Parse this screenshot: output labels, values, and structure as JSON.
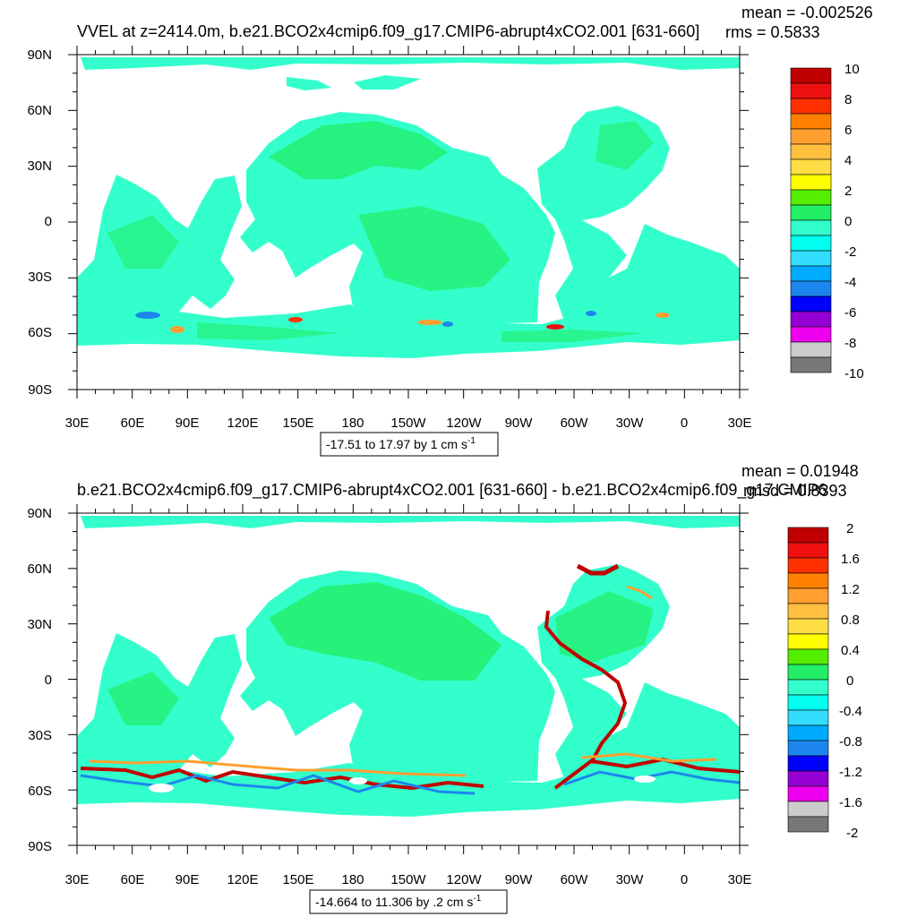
{
  "panels": [
    {
      "id": "top",
      "title": "VVEL at z=2414.0m, b.e21.BCO2x4cmip6.f09_g17.CMIP6-abrupt4xCO2.001 [631-660]",
      "mean_text": "mean = -0.002526",
      "rms_text": "rms = 0.5833",
      "range_text": "-17.51 to 17.97 by 1 cm s",
      "range_sup": "-1",
      "colorbar_labels": [
        "10",
        "8",
        "6",
        "4",
        "2",
        "0",
        "-2",
        "-4",
        "-6",
        "-8",
        "-10"
      ],
      "lat_labels": [
        "90N",
        "60N",
        "30N",
        "0",
        "30S",
        "60S",
        "90S"
      ],
      "lon_labels": [
        "30E",
        "60E",
        "90E",
        "120E",
        "150E",
        "180",
        "150W",
        "120W",
        "90W",
        "60W",
        "30W",
        "0",
        "30E"
      ]
    },
    {
      "id": "bottom",
      "title": "b.e21.BCO2x4cmip6.f09_g17.CMIP6-abrupt4xCO2.001 [631-660] - b.e21.BCO2x4cmip6.f09_g17.CMIP6",
      "mean_text": "mean = 0.01948",
      "rms_text": "rmsd = 0.8393",
      "range_text": "-14.664 to 11.306 by .2 cm s",
      "range_sup": "-1",
      "colorbar_labels": [
        "2",
        "1.6",
        "1.2",
        "0.8",
        "0.4",
        "0",
        "-0.4",
        "-0.8",
        "-1.2",
        "-1.6",
        "-2"
      ],
      "lat_labels": [
        "90N",
        "60N",
        "30N",
        "0",
        "30S",
        "60S",
        "90S"
      ],
      "lon_labels": [
        "30E",
        "60E",
        "90E",
        "120E",
        "150E",
        "180",
        "150W",
        "120W",
        "90W",
        "60W",
        "30W",
        "0",
        "30E"
      ]
    }
  ],
  "colormap": [
    "#777777",
    "#cccccc",
    "#ee00ee",
    "#9400d3",
    "#0000ff",
    "#1c86ee",
    "#00aaff",
    "#33ddff",
    "#00ffee",
    "#33ffcc",
    "#22ee66",
    "#55ee00",
    "#ffff00",
    "#ffdd44",
    "#ffc040",
    "#ff9f30",
    "#ff8000",
    "#ff3000",
    "#ee1010",
    "#c00000"
  ]
}
